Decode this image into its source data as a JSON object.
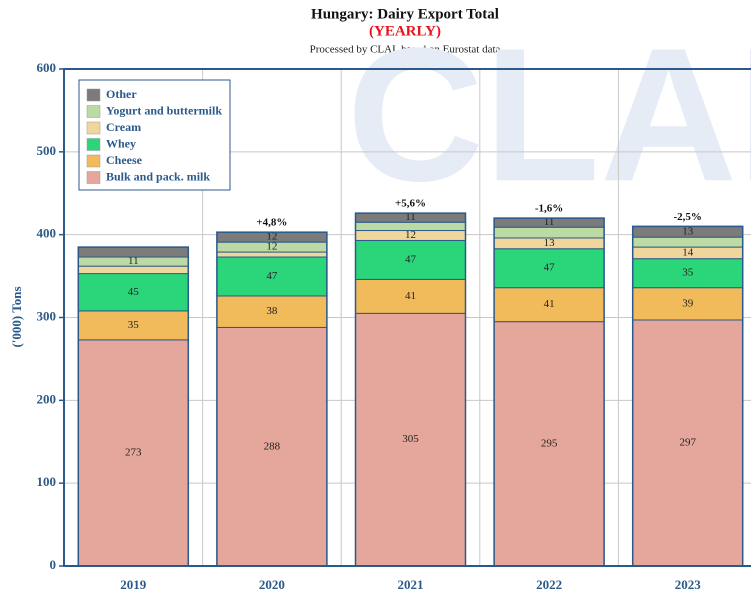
{
  "chart_data": {
    "type": "stacked_bar",
    "title": "Hungary: Dairy Export Total",
    "subtitle": "(YEARLY)",
    "source": "Processed by CLAL based on Eurostat data",
    "watermark": "CLAL",
    "y_label": "('000) Tons",
    "categories": [
      "2019",
      "2020",
      "2021",
      "2022",
      "2023"
    ],
    "growth_labels": [
      null,
      "+4,8%",
      "+5,6%",
      "-1,6%",
      "-2,5%"
    ],
    "series": [
      {
        "name": "Bulk and pack. milk",
        "color": "#e5a69b",
        "values": [
          273,
          288,
          305,
          295,
          297
        ],
        "value_labels": [
          "273",
          "288",
          "305",
          "295",
          "297"
        ]
      },
      {
        "name": "Cheese",
        "color": "#f1bb5c",
        "values": [
          35,
          38,
          41,
          41,
          39
        ],
        "value_labels": [
          "35",
          "38",
          "41",
          "41",
          "39"
        ]
      },
      {
        "name": "Whey",
        "color": "#2bd67b",
        "values": [
          45,
          47,
          47,
          47,
          35
        ],
        "value_labels": [
          "45",
          "47",
          "47",
          "47",
          "35"
        ]
      },
      {
        "name": "Cream",
        "color": "#efd79c",
        "values": [
          9,
          6,
          12,
          13,
          14
        ],
        "value_labels": [
          null,
          null,
          "12",
          "13",
          "14"
        ]
      },
      {
        "name": "Yogurt and buttermilk",
        "color": "#bcdba4",
        "values": [
          11,
          12,
          10,
          13,
          12
        ],
        "value_labels": [
          "11",
          "12",
          null,
          null,
          null
        ]
      },
      {
        "name": "Other",
        "color": "#7b7b7b",
        "values": [
          12,
          12,
          11,
          11,
          13
        ],
        "value_labels": [
          null,
          "12",
          "11",
          "11",
          "13"
        ]
      }
    ],
    "ylim": [
      0,
      600
    ],
    "yticks": [
      0,
      100,
      200,
      300,
      400,
      500,
      600
    ],
    "grid": true,
    "legend": "upper left"
  }
}
